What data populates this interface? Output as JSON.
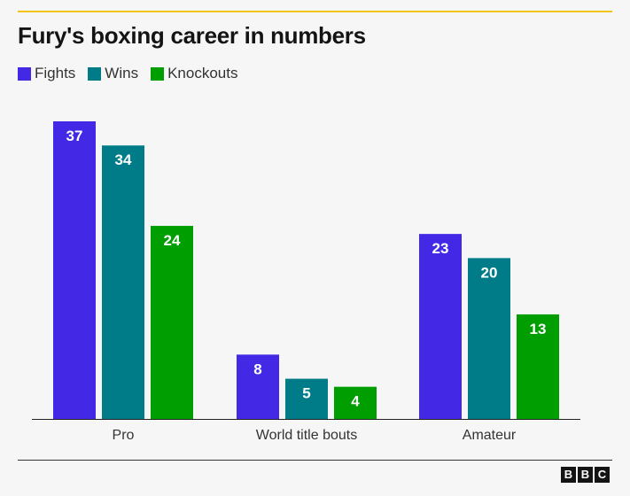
{
  "title": "Fury's boxing career in numbers",
  "logo": [
    "B",
    "B",
    "C"
  ],
  "colors": {
    "accent_rule": "#f0c516"
  },
  "chart_data": {
    "type": "bar",
    "categories": [
      "Pro",
      "World title bouts",
      "Amateur"
    ],
    "series": [
      {
        "name": "Fights",
        "color": "#4329e6",
        "values": [
          37,
          8,
          23
        ]
      },
      {
        "name": "Wins",
        "color": "#007c88",
        "values": [
          34,
          5,
          20
        ]
      },
      {
        "name": "Knockouts",
        "color": "#009e00",
        "values": [
          24,
          4,
          13
        ]
      }
    ],
    "ylim": [
      0,
      37
    ],
    "legend": "top-left",
    "grid": false,
    "data_labels": true
  }
}
